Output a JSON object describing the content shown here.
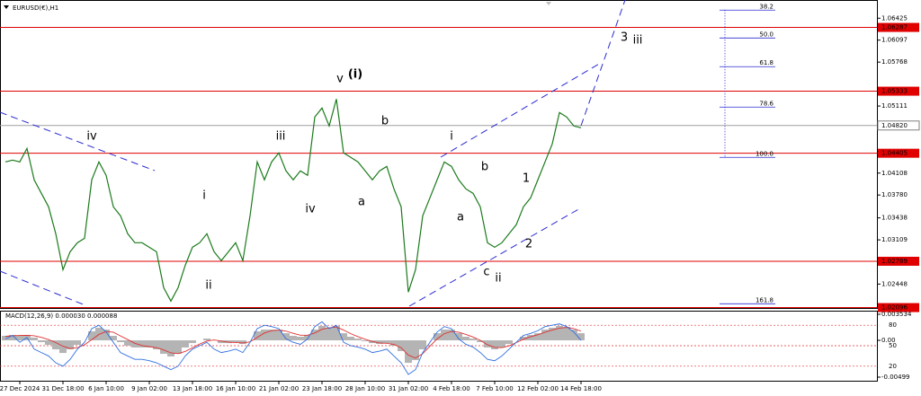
{
  "chart_data": [
    {
      "type": "line",
      "title": "EURUSD(€),H1",
      "categories": [
        null,
        null,
        "27 Dec 2024",
        null,
        null,
        null,
        null,
        null,
        "31 Dec 18:00",
        null,
        null,
        null,
        null,
        null,
        "6 Jan 10:00",
        null,
        null,
        null,
        null,
        null,
        "9 Jan 02:00",
        null,
        null,
        null,
        null,
        null,
        "13 Jan 18:00",
        null,
        null,
        null,
        null,
        null,
        "16 Jan 10:00",
        null,
        null,
        null,
        null,
        null,
        "21 Jan 02:00",
        null,
        null,
        null,
        null,
        null,
        "23 Jan 18:00",
        null,
        null,
        null,
        null,
        null,
        "28 Jan 10:00",
        null,
        null,
        null,
        null,
        null,
        "31 Jan 02:00",
        null,
        null,
        null,
        null,
        null,
        "4 Feb 18:00",
        null,
        null,
        null,
        null,
        null,
        "7 Feb 10:00",
        null,
        null,
        null,
        null,
        null,
        "12 Feb 02:00",
        null,
        null,
        null,
        null,
        null,
        "14 Feb 18:00"
      ],
      "series": [
        {
          "color": "#1b7a1b",
          "values": [
            1.04275,
            1.04302,
            1.04275,
            1.04477,
            1.04007,
            1.03805,
            1.03604,
            1.03201,
            1.02663,
            1.02932,
            1.03066,
            1.03133,
            1.04007,
            1.04275,
            1.04074,
            1.03604,
            1.03469,
            1.03201,
            1.03066,
            1.03066,
            1.02999,
            1.02932,
            1.02394,
            1.02193,
            1.02394,
            1.0273,
            1.02999,
            1.03066,
            1.03201,
            1.02932,
            1.02798,
            1.02932,
            1.03066,
            1.02798,
            1.03469,
            1.04275,
            1.04007,
            1.04275,
            1.0441,
            1.04141,
            1.04007,
            1.04141,
            1.04074,
            1.04947,
            1.05081,
            1.04813,
            1.05216,
            1.0441,
            1.04343,
            1.04275,
            1.04141,
            1.04007,
            1.04141,
            1.04208,
            1.03872,
            1.03604,
            1.02327,
            1.02663,
            1.03469,
            1.03738,
            1.04007,
            1.04275,
            1.04208,
            1.04007,
            1.03872,
            1.03805,
            1.03604,
            1.03066,
            1.02999,
            1.03066,
            1.03201,
            1.03335,
            1.03604,
            1.03738,
            1.04007,
            1.04275,
            1.04544,
            1.05014,
            1.04947,
            1.04813,
            1.04786
          ]
        }
      ],
      "ylim": [
        1.0209,
        1.0663
      ],
      "yticks": [
        1.06425,
        1.06097,
        1.05768,
        1.05111,
        1.04108,
        {
          "value": 1.0378,
          "label": "1.03780"
        },
        1.03438,
        1.03109,
        1.02448
      ],
      "price_lines": [
        {
          "value": 1.06287,
          "color": "#e00000"
        },
        {
          "value": 1.05333,
          "color": "#e00000"
        },
        {
          "value": 1.04405,
          "color": "#e00000"
        },
        {
          "value": 1.02789,
          "color": "#e00000"
        },
        {
          "value": 1.02096,
          "color": "#e00000"
        }
      ],
      "current_price": {
        "value": 1.0482,
        "label": "1.04820"
      },
      "fibonacci": [
        {
          "price": 1.06546,
          "label": "38.2"
        },
        {
          "price": 1.06129,
          "label": "50.0"
        },
        {
          "price": 1.057,
          "label": "61.8"
        },
        {
          "price": 1.05095,
          "label": "78.6"
        },
        {
          "price": 1.04343,
          "label": "100.0"
        },
        {
          "price": 1.02153,
          "label": "161.8"
        }
      ],
      "annotations": [
        {
          "text": "iv",
          "color": "#e619e6"
        },
        {
          "text": "i",
          "color": "#e619e6"
        },
        {
          "text": "ii",
          "color": "#e619e6"
        },
        {
          "text": "iii",
          "color": "#e619e6"
        },
        {
          "text": "iv",
          "color": "#e619e6"
        },
        {
          "text": "v",
          "color": "#e619e6"
        },
        {
          "text": "(i)",
          "color": "#23239a"
        },
        {
          "text": "b",
          "color": "#e619e6"
        },
        {
          "text": "a",
          "color": "#e619e6"
        },
        {
          "text": "i",
          "color": "#e619e6"
        },
        {
          "text": "a",
          "color": "#000000"
        },
        {
          "text": "b",
          "color": "#000000"
        },
        {
          "text": "c",
          "color": "#000000"
        },
        {
          "text": "ii",
          "color": "#e619e6"
        },
        {
          "text": "1",
          "color": "#000000"
        },
        {
          "text": "2",
          "color": "#000000"
        },
        {
          "text": "3",
          "color": "#000000"
        },
        {
          "text": "iii",
          "color": "#e619e6"
        }
      ]
    },
    {
      "type": "bar",
      "title": "MACD(12,26,9) 0.000030 0.000088",
      "color": "#b4b4b4",
      "values": [
        0.00061,
        0.00073,
        0.00061,
        0.00073,
        0.00037,
        -0.00024,
        -0.00061,
        -0.00122,
        -0.00171,
        -0.00122,
        -0.00061,
        0,
        0.00122,
        0.00171,
        0.00146,
        0.00061,
        -0.00024,
        -0.00073,
        -0.00097,
        -0.00097,
        -0.00097,
        -0.00122,
        -0.00183,
        -0.00219,
        -0.00183,
        -0.00097,
        -0.00037,
        0,
        0.00024,
        0,
        -0.00037,
        -0.00037,
        -0.00024,
        -0.00049,
        0,
        0.00122,
        0.00146,
        0.00146,
        0.00146,
        0.00097,
        0.00061,
        0.00049,
        0.00073,
        0.00146,
        0.00195,
        0.00171,
        0.00195,
        0.00097,
        0.00049,
        0.00024,
        -0.00012,
        -0.00037,
        -0.00049,
        -0.00037,
        -0.00073,
        -0.00146,
        -0.00305,
        -0.00268,
        -0.00122,
        0,
        0.00097,
        0.00146,
        0.00146,
        0.00097,
        0.00049,
        0.00024,
        -0.00024,
        -0.00097,
        -0.00122,
        -0.00097,
        -0.00049,
        0,
        0.00049,
        0.00073,
        0.00097,
        0.00146,
        0.00171,
        0.00195,
        0.00183,
        0.00146,
        0.00097
      ],
      "series": [
        {
          "color": "#e03030",
          "values": [
            0.00055,
            0.00062,
            0.00066,
            0.00068,
            0.00062,
            0.0004,
            0.0001,
            -0.0003,
            -0.0008,
            -0.0011,
            -0.001,
            -0.0006,
            0.0001,
            0.0008,
            0.0012,
            0.0011,
            0.0006,
            0.0001,
            -0.0004,
            -0.0007,
            -0.00085,
            -0.001,
            -0.0013,
            -0.0017,
            -0.0018,
            -0.0015,
            -0.001,
            -0.0005,
            -0.0001,
            5e-05,
            -0.0001,
            -0.00025,
            -0.0003,
            -0.00035,
            -0.0002,
            0.0004,
            0.001,
            0.0013,
            0.0014,
            0.00125,
            0.00095,
            0.0007,
            0.0007,
            0.001,
            0.0015,
            0.0017,
            0.0018,
            0.0014,
            0.0009,
            0.0005,
            0.00015,
            -0.00015,
            -0.00035,
            -0.0004,
            -0.00055,
            -0.001,
            -0.002,
            -0.0024,
            -0.0018,
            -0.0008,
            0.0002,
            0.0009,
            0.0012,
            0.0011,
            0.0008,
            0.00045,
            0,
            -0.0006,
            -0.00095,
            -0.001,
            -0.00075,
            -0.0003,
            0.00015,
            0.0005,
            0.00075,
            0.0011,
            0.0014,
            0.00165,
            0.00175,
            0.0016,
            0.00125
          ]
        },
        {
          "color": "#2f6fe0",
          "axis": "y2",
          "values": [
            60,
            65,
            55,
            62,
            45,
            40,
            35,
            25,
            20,
            30,
            45,
            55,
            75,
            80,
            70,
            55,
            40,
            35,
            30,
            30,
            28,
            25,
            20,
            15,
            20,
            35,
            45,
            50,
            55,
            45,
            40,
            42,
            45,
            40,
            55,
            75,
            80,
            78,
            75,
            60,
            55,
            52,
            60,
            78,
            85,
            75,
            80,
            55,
            50,
            48,
            45,
            40,
            42,
            45,
            35,
            25,
            8,
            15,
            40,
            55,
            70,
            78,
            75,
            60,
            52,
            48,
            40,
            30,
            28,
            35,
            45,
            55,
            65,
            68,
            72,
            78,
            80,
            82,
            78,
            70,
            58
          ]
        }
      ],
      "ylim": [
        -0.00499,
        0.003534
      ],
      "yticks": [
        0.003534,
        {
          "value": 0,
          "label": "0.00"
        },
        -0.00499
      ],
      "y2lim": [
        4,
        96
      ],
      "y2ticks": [
        80,
        50,
        20
      ]
    }
  ]
}
